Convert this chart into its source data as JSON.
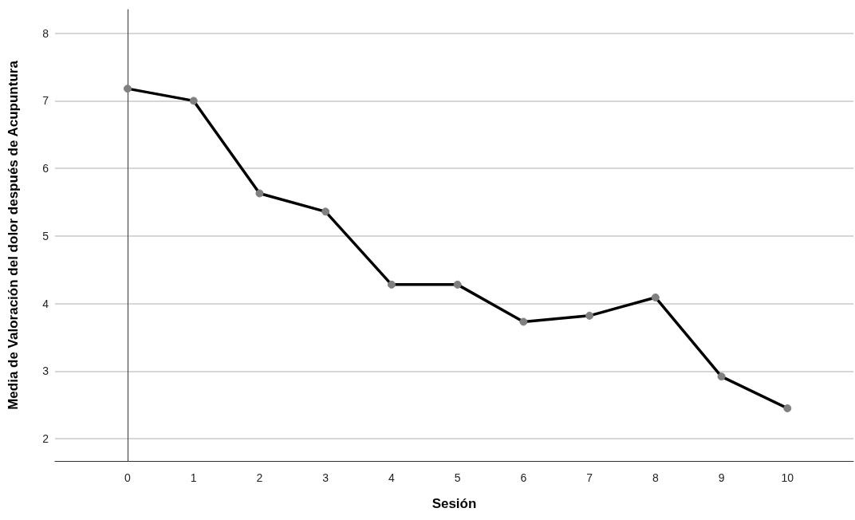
{
  "chart_data": {
    "type": "line",
    "xlabel": "Sesión",
    "ylabel": "Media de Valoración del dolor después de Acupuntura",
    "x": [
      0,
      1,
      2,
      3,
      4,
      5,
      6,
      7,
      8,
      9,
      10
    ],
    "series": [
      {
        "color": "#000000",
        "values": [
          7.18,
          7.0,
          5.63,
          5.36,
          4.28,
          4.28,
          3.73,
          3.82,
          4.09,
          2.92,
          2.45
        ]
      }
    ],
    "xlim": [
      -1.1,
      11
    ],
    "xticks": [
      0,
      1,
      2,
      3,
      4,
      5,
      6,
      7,
      8,
      9,
      10
    ],
    "ylim": [
      1.67,
      8.35
    ],
    "yticks": [
      2,
      3,
      4,
      5,
      6,
      7,
      8
    ],
    "grid": "y",
    "marker": "circle",
    "line_style": "solid"
  }
}
